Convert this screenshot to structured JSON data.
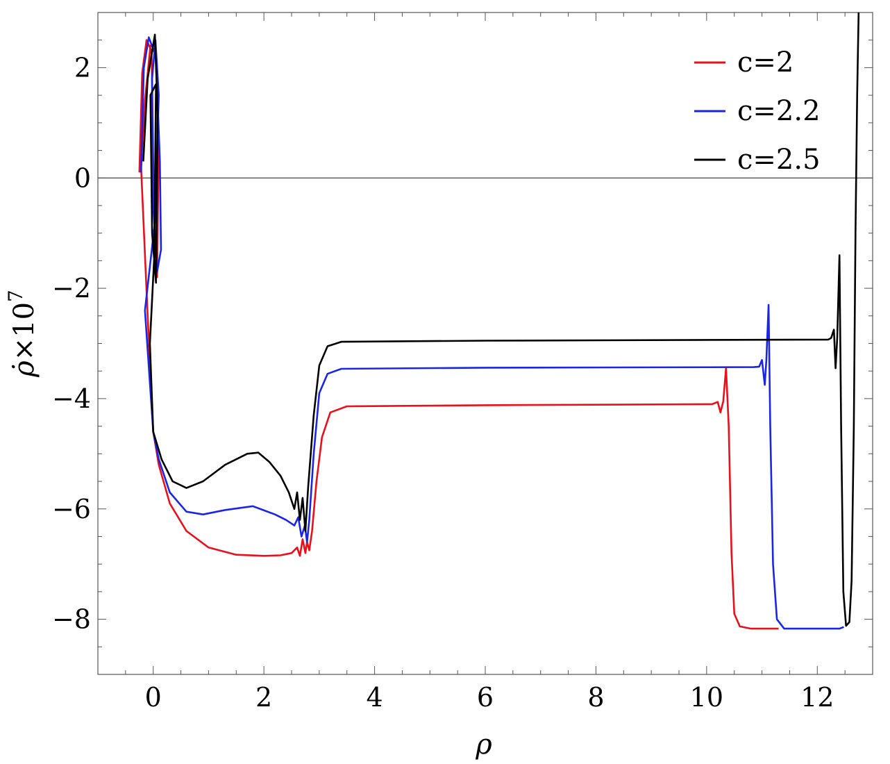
{
  "chart_data": {
    "type": "line",
    "title": "",
    "xlabel": "ρ",
    "ylabel_main": "ρ̇",
    "ylabel_suffix": "×10",
    "ylabel_exponent": "7",
    "xlim": [
      -1,
      13
    ],
    "ylim": [
      -9,
      3
    ],
    "xticks": [
      0,
      2,
      4,
      6,
      8,
      10,
      12
    ],
    "yticks": [
      -8,
      -6,
      -4,
      -2,
      0,
      2
    ],
    "tick_labels_x": [
      "0",
      "2",
      "4",
      "6",
      "8",
      "10",
      "12"
    ],
    "tick_labels_y": [
      "−8",
      "−6",
      "−4",
      "−2",
      "0",
      "2"
    ],
    "grid": false,
    "zero_line": true,
    "legend_position": "top-right",
    "series": [
      {
        "name": "c=2",
        "color": "#e8101a",
        "points": [
          [
            -0.25,
            0.1
          ],
          [
            -0.2,
            1.9
          ],
          [
            -0.12,
            2.5
          ],
          [
            -0.03,
            2.3
          ],
          [
            0.0,
            0.3
          ],
          [
            0.03,
            -1.2
          ],
          [
            0.07,
            -1.8
          ],
          [
            0.1,
            0.6
          ],
          [
            0.04,
            2.4
          ],
          [
            -0.05,
            2.4
          ],
          [
            -0.15,
            1.4
          ],
          [
            -0.22,
            0.2
          ],
          [
            -0.1,
            -2.5
          ],
          [
            0.0,
            -4.6
          ],
          [
            0.1,
            -5.2
          ],
          [
            0.3,
            -5.9
          ],
          [
            0.6,
            -6.4
          ],
          [
            1.0,
            -6.7
          ],
          [
            1.5,
            -6.83
          ],
          [
            2.0,
            -6.85
          ],
          [
            2.3,
            -6.84
          ],
          [
            2.5,
            -6.8
          ],
          [
            2.6,
            -6.7
          ],
          [
            2.65,
            -6.85
          ],
          [
            2.7,
            -6.55
          ],
          [
            2.75,
            -6.8
          ],
          [
            2.78,
            -6.6
          ],
          [
            2.82,
            -6.75
          ],
          [
            2.87,
            -6.4
          ],
          [
            2.95,
            -5.5
          ],
          [
            3.05,
            -4.7
          ],
          [
            3.2,
            -4.25
          ],
          [
            3.5,
            -4.14
          ],
          [
            6.0,
            -4.12
          ],
          [
            10.1,
            -4.1
          ],
          [
            10.2,
            -4.06
          ],
          [
            10.25,
            -4.25
          ],
          [
            10.3,
            -4.05
          ],
          [
            10.35,
            -3.45
          ],
          [
            10.4,
            -4.5
          ],
          [
            10.45,
            -6.8
          ],
          [
            10.5,
            -7.9
          ],
          [
            10.6,
            -8.13
          ],
          [
            10.8,
            -8.17
          ],
          [
            11.3,
            -8.17
          ]
        ]
      },
      {
        "name": "c=2.2",
        "color": "#1a25e6",
        "points": [
          [
            -0.22,
            0.1
          ],
          [
            -0.17,
            2.0
          ],
          [
            -0.08,
            2.55
          ],
          [
            0.05,
            2.2
          ],
          [
            0.12,
            0.3
          ],
          [
            0.14,
            -1.3
          ],
          [
            0.07,
            -1.7
          ],
          [
            0.0,
            -0.5
          ],
          [
            -0.02,
            1.8
          ],
          [
            0.04,
            2.5
          ],
          [
            0.1,
            1.5
          ],
          [
            0.03,
            -0.8
          ],
          [
            -0.15,
            -2.4
          ],
          [
            0.0,
            -4.6
          ],
          [
            0.1,
            -5.1
          ],
          [
            0.3,
            -5.7
          ],
          [
            0.6,
            -6.05
          ],
          [
            0.9,
            -6.1
          ],
          [
            1.3,
            -6.02
          ],
          [
            1.8,
            -5.95
          ],
          [
            2.2,
            -6.1
          ],
          [
            2.4,
            -6.2
          ],
          [
            2.55,
            -6.3
          ],
          [
            2.62,
            -6.15
          ],
          [
            2.68,
            -6.5
          ],
          [
            2.74,
            -6.3
          ],
          [
            2.78,
            -6.6
          ],
          [
            2.82,
            -6.2
          ],
          [
            2.9,
            -5.0
          ],
          [
            3.0,
            -3.9
          ],
          [
            3.15,
            -3.55
          ],
          [
            3.4,
            -3.46
          ],
          [
            6.0,
            -3.44
          ],
          [
            10.85,
            -3.43
          ],
          [
            10.95,
            -3.42
          ],
          [
            11.0,
            -3.3
          ],
          [
            11.05,
            -3.75
          ],
          [
            11.08,
            -3.3
          ],
          [
            11.12,
            -2.3
          ],
          [
            11.15,
            -4.5
          ],
          [
            11.2,
            -7.0
          ],
          [
            11.27,
            -8.0
          ],
          [
            11.4,
            -8.17
          ],
          [
            12.4,
            -8.17
          ],
          [
            12.48,
            -8.14
          ]
        ]
      },
      {
        "name": "c=2.5",
        "color": "#000000",
        "points": [
          [
            -0.18,
            0.3
          ],
          [
            -0.1,
            1.8
          ],
          [
            0.03,
            2.6
          ],
          [
            0.08,
            1.2
          ],
          [
            0.05,
            -1.9
          ],
          [
            -0.02,
            -1.0
          ],
          [
            -0.05,
            1.5
          ],
          [
            0.05,
            1.7
          ],
          [
            0.02,
            -1.4
          ],
          [
            -0.06,
            -3.0
          ],
          [
            0.0,
            -4.6
          ],
          [
            0.15,
            -5.1
          ],
          [
            0.35,
            -5.5
          ],
          [
            0.6,
            -5.62
          ],
          [
            0.9,
            -5.5
          ],
          [
            1.3,
            -5.2
          ],
          [
            1.7,
            -5.0
          ],
          [
            1.9,
            -4.98
          ],
          [
            2.1,
            -5.15
          ],
          [
            2.3,
            -5.4
          ],
          [
            2.45,
            -5.7
          ],
          [
            2.55,
            -6.0
          ],
          [
            2.6,
            -5.7
          ],
          [
            2.65,
            -6.2
          ],
          [
            2.7,
            -5.8
          ],
          [
            2.75,
            -6.4
          ],
          [
            2.8,
            -5.6
          ],
          [
            2.9,
            -4.3
          ],
          [
            3.0,
            -3.4
          ],
          [
            3.15,
            -3.05
          ],
          [
            3.4,
            -2.97
          ],
          [
            6.0,
            -2.95
          ],
          [
            12.2,
            -2.93
          ],
          [
            12.25,
            -2.9
          ],
          [
            12.3,
            -2.75
          ],
          [
            12.33,
            -3.45
          ],
          [
            12.36,
            -2.9
          ],
          [
            12.4,
            -1.4
          ],
          [
            12.43,
            -4.5
          ],
          [
            12.47,
            -7.5
          ],
          [
            12.52,
            -8.12
          ],
          [
            12.58,
            -8.05
          ],
          [
            12.62,
            -7.3
          ],
          [
            12.66,
            -4.5
          ],
          [
            12.69,
            -1.0
          ],
          [
            12.72,
            1.5
          ],
          [
            12.75,
            3.2
          ]
        ]
      }
    ]
  }
}
